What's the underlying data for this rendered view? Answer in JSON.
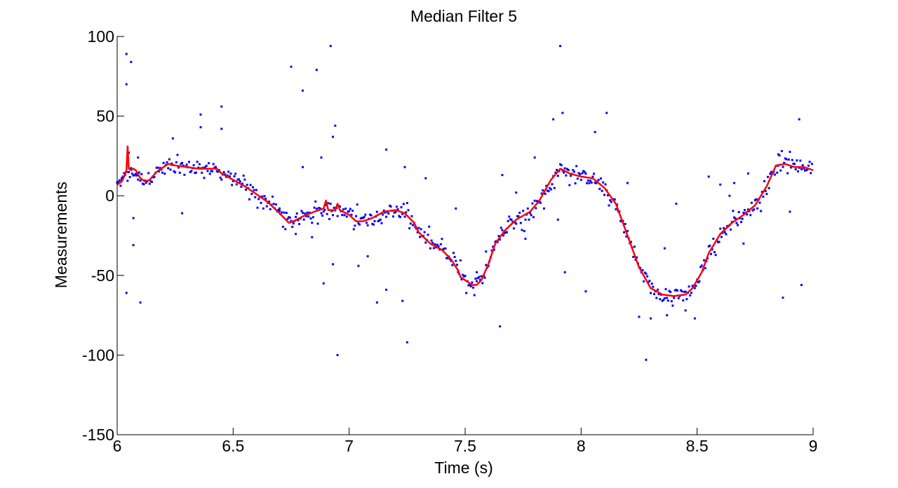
{
  "chart_data": {
    "type": "scatter",
    "title": "Median Filter 5",
    "xlabel": "Time (s)",
    "ylabel": "Measurements",
    "xlim": [
      6,
      9
    ],
    "ylim": [
      -150,
      100
    ],
    "xticks": [
      "6",
      "6.5",
      "7",
      "7.5",
      "8",
      "8.5",
      "9"
    ],
    "yticks": [
      "100",
      "50",
      "0",
      "-50",
      "-100",
      "-150"
    ],
    "grid": false,
    "legend": "none",
    "series": [
      {
        "kind": "points",
        "color": "#0000ff",
        "marker": "dot",
        "trend": [
          [
            6.0,
            7
          ],
          [
            6.04,
            12
          ],
          [
            6.07,
            15
          ],
          [
            6.1,
            11
          ],
          [
            6.13,
            10
          ],
          [
            6.16,
            14
          ],
          [
            6.22,
            19
          ],
          [
            6.3,
            18
          ],
          [
            6.4,
            17
          ],
          [
            6.45,
            14
          ],
          [
            6.5,
            10
          ],
          [
            6.55,
            6
          ],
          [
            6.6,
            1
          ],
          [
            6.65,
            -4
          ],
          [
            6.7,
            -11
          ],
          [
            6.75,
            -17
          ],
          [
            6.8,
            -13
          ],
          [
            6.85,
            -10
          ],
          [
            6.9,
            -8
          ],
          [
            6.95,
            -9
          ],
          [
            7.0,
            -13
          ],
          [
            7.05,
            -16
          ],
          [
            7.1,
            -14
          ],
          [
            7.15,
            -10
          ],
          [
            7.2,
            -9
          ],
          [
            7.25,
            -12
          ],
          [
            7.3,
            -22
          ],
          [
            7.35,
            -30
          ],
          [
            7.4,
            -34
          ],
          [
            7.45,
            -42
          ],
          [
            7.5,
            -54
          ],
          [
            7.55,
            -56
          ],
          [
            7.58,
            -50
          ],
          [
            7.62,
            -32
          ],
          [
            7.67,
            -20
          ],
          [
            7.72,
            -15
          ],
          [
            7.78,
            -10
          ],
          [
            7.85,
            3
          ],
          [
            7.91,
            17
          ],
          [
            7.95,
            15
          ],
          [
            8.0,
            12
          ],
          [
            8.05,
            11
          ],
          [
            8.1,
            4
          ],
          [
            8.15,
            -5
          ],
          [
            8.2,
            -25
          ],
          [
            8.25,
            -45
          ],
          [
            8.3,
            -58
          ],
          [
            8.35,
            -62
          ],
          [
            8.4,
            -63
          ],
          [
            8.45,
            -62
          ],
          [
            8.5,
            -55
          ],
          [
            8.55,
            -35
          ],
          [
            8.6,
            -24
          ],
          [
            8.65,
            -17
          ],
          [
            8.7,
            -12
          ],
          [
            8.75,
            -6
          ],
          [
            8.8,
            5
          ],
          [
            8.84,
            19
          ],
          [
            8.88,
            20
          ],
          [
            8.92,
            18
          ],
          [
            8.96,
            18
          ],
          [
            9.0,
            17
          ]
        ],
        "outliers": [
          [
            6.04,
            89
          ],
          [
            6.06,
            84
          ],
          [
            6.04,
            70
          ],
          [
            6.02,
            10
          ],
          [
            6.05,
            27
          ],
          [
            6.07,
            -14
          ],
          [
            6.07,
            -31
          ],
          [
            6.1,
            -67
          ],
          [
            6.04,
            -61
          ],
          [
            6.09,
            24
          ],
          [
            6.24,
            36
          ],
          [
            6.28,
            -11
          ],
          [
            6.36,
            51
          ],
          [
            6.36,
            43
          ],
          [
            6.45,
            56
          ],
          [
            6.45,
            42
          ],
          [
            6.75,
            81
          ],
          [
            6.8,
            66
          ],
          [
            6.86,
            79
          ],
          [
            6.92,
            94
          ],
          [
            6.94,
            44
          ],
          [
            6.93,
            37
          ],
          [
            6.88,
            24
          ],
          [
            6.95,
            -100
          ],
          [
            6.89,
            -55
          ],
          [
            6.93,
            -43
          ],
          [
            6.8,
            18
          ],
          [
            6.84,
            -26
          ],
          [
            6.7,
            -8
          ],
          [
            6.77,
            -24
          ],
          [
            7.04,
            -44
          ],
          [
            7.12,
            -67
          ],
          [
            7.08,
            -38
          ],
          [
            7.16,
            -59
          ],
          [
            7.23,
            -66
          ],
          [
            7.25,
            -92
          ],
          [
            7.16,
            29
          ],
          [
            7.24,
            18
          ],
          [
            7.33,
            11
          ],
          [
            7.46,
            -8
          ],
          [
            7.47,
            -47
          ],
          [
            7.55,
            -48
          ],
          [
            7.59,
            -35
          ],
          [
            7.65,
            -82
          ],
          [
            7.66,
            13
          ],
          [
            7.72,
            2
          ],
          [
            7.76,
            -27
          ],
          [
            7.8,
            24
          ],
          [
            7.84,
            -8
          ],
          [
            7.88,
            48
          ],
          [
            7.91,
            94
          ],
          [
            7.92,
            52
          ],
          [
            7.9,
            -15
          ],
          [
            7.93,
            -48
          ],
          [
            8.06,
            40
          ],
          [
            8.11,
            52
          ],
          [
            8.02,
            -60
          ],
          [
            8.25,
            -76
          ],
          [
            8.28,
            -103
          ],
          [
            8.3,
            -77
          ],
          [
            8.36,
            -33
          ],
          [
            8.41,
            -5
          ],
          [
            8.37,
            -75
          ],
          [
            8.49,
            -77
          ],
          [
            8.45,
            -72
          ],
          [
            8.55,
            12
          ],
          [
            8.6,
            7
          ],
          [
            8.64,
            0
          ],
          [
            8.66,
            8
          ],
          [
            8.72,
            14
          ],
          [
            8.7,
            -30
          ],
          [
            8.85,
            26
          ],
          [
            8.87,
            -64
          ],
          [
            8.9,
            -10
          ],
          [
            8.94,
            48
          ],
          [
            8.95,
            -56
          ],
          [
            8.2,
            8
          ]
        ]
      },
      {
        "kind": "line",
        "color": "#ff0000",
        "points": [
          [
            6.0,
            7
          ],
          [
            6.02,
            9
          ],
          [
            6.03,
            12
          ],
          [
            6.04,
            16
          ],
          [
            6.045,
            31
          ],
          [
            6.05,
            17
          ],
          [
            6.06,
            16
          ],
          [
            6.07,
            17
          ],
          [
            6.08,
            16
          ],
          [
            6.1,
            11
          ],
          [
            6.12,
            9
          ],
          [
            6.14,
            10
          ],
          [
            6.17,
            15
          ],
          [
            6.2,
            18
          ],
          [
            6.22,
            20
          ],
          [
            6.25,
            19
          ],
          [
            6.3,
            18
          ],
          [
            6.35,
            17
          ],
          [
            6.4,
            17
          ],
          [
            6.43,
            17
          ],
          [
            6.45,
            14
          ],
          [
            6.5,
            10
          ],
          [
            6.55,
            6
          ],
          [
            6.6,
            1
          ],
          [
            6.65,
            -4
          ],
          [
            6.7,
            -11
          ],
          [
            6.74,
            -17
          ],
          [
            6.76,
            -16
          ],
          [
            6.8,
            -13
          ],
          [
            6.85,
            -10
          ],
          [
            6.89,
            -8
          ],
          [
            6.9,
            -3
          ],
          [
            6.91,
            -9
          ],
          [
            6.94,
            -9
          ],
          [
            6.95,
            -5
          ],
          [
            6.96,
            -9
          ],
          [
            7.0,
            -12
          ],
          [
            7.03,
            -16
          ],
          [
            7.06,
            -16
          ],
          [
            7.1,
            -14
          ],
          [
            7.15,
            -10
          ],
          [
            7.2,
            -9
          ],
          [
            7.24,
            -11
          ],
          [
            7.28,
            -17
          ],
          [
            7.3,
            -23
          ],
          [
            7.35,
            -30
          ],
          [
            7.4,
            -34
          ],
          [
            7.44,
            -40
          ],
          [
            7.47,
            -47
          ],
          [
            7.48,
            -51
          ],
          [
            7.5,
            -53
          ],
          [
            7.53,
            -56
          ],
          [
            7.55,
            -56
          ],
          [
            7.57,
            -53
          ],
          [
            7.6,
            -43
          ],
          [
            7.63,
            -30
          ],
          [
            7.67,
            -22
          ],
          [
            7.72,
            -15
          ],
          [
            7.78,
            -10
          ],
          [
            7.82,
            -3
          ],
          [
            7.87,
            10
          ],
          [
            7.91,
            17
          ],
          [
            7.95,
            14
          ],
          [
            8.0,
            12
          ],
          [
            8.05,
            11
          ],
          [
            8.1,
            5
          ],
          [
            8.15,
            -5
          ],
          [
            8.2,
            -25
          ],
          [
            8.25,
            -45
          ],
          [
            8.3,
            -58
          ],
          [
            8.35,
            -62
          ],
          [
            8.4,
            -63
          ],
          [
            8.45,
            -62
          ],
          [
            8.48,
            -58
          ],
          [
            8.52,
            -48
          ],
          [
            8.55,
            -36
          ],
          [
            8.6,
            -24
          ],
          [
            8.65,
            -17
          ],
          [
            8.7,
            -12
          ],
          [
            8.75,
            -6
          ],
          [
            8.8,
            6
          ],
          [
            8.84,
            19
          ],
          [
            8.88,
            20
          ],
          [
            8.92,
            18
          ],
          [
            8.96,
            18
          ],
          [
            9.0,
            16
          ]
        ]
      }
    ]
  }
}
